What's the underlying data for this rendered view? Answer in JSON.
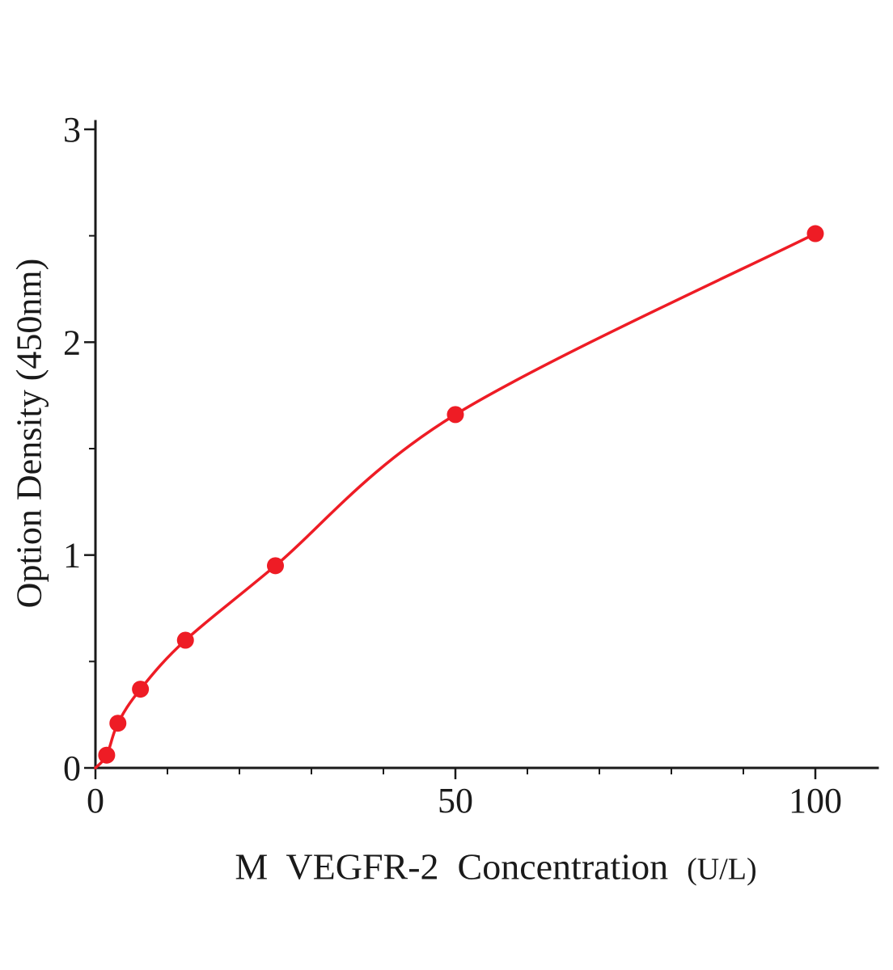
{
  "chart_data": {
    "type": "scatter",
    "title": "",
    "xlabel": "M  VEGFR-2  Concentration (U/L)",
    "xlabel_main": "M  VEGFR-2  Concentration",
    "xlabel_unit": "(U/L)",
    "ylabel": "Option Density (450nm)",
    "x": [
      1.56,
      3.12,
      6.25,
      12.5,
      25,
      50,
      100
    ],
    "y": [
      0.06,
      0.21,
      0.37,
      0.6,
      0.95,
      1.66,
      2.51
    ],
    "curve_start": [
      0,
      0
    ],
    "xlim": [
      0,
      100
    ],
    "ylim": [
      0,
      3
    ],
    "x_major_ticks": [
      0,
      50,
      100
    ],
    "x_minor_step": 10,
    "y_major_ticks": [
      0,
      1,
      2,
      3
    ],
    "y_minor_step": 0.5,
    "grid": false,
    "legend": null,
    "marker_color": "#ee1c25",
    "line_color": "#ee1c25",
    "axis_color": "#1a1a1a"
  }
}
